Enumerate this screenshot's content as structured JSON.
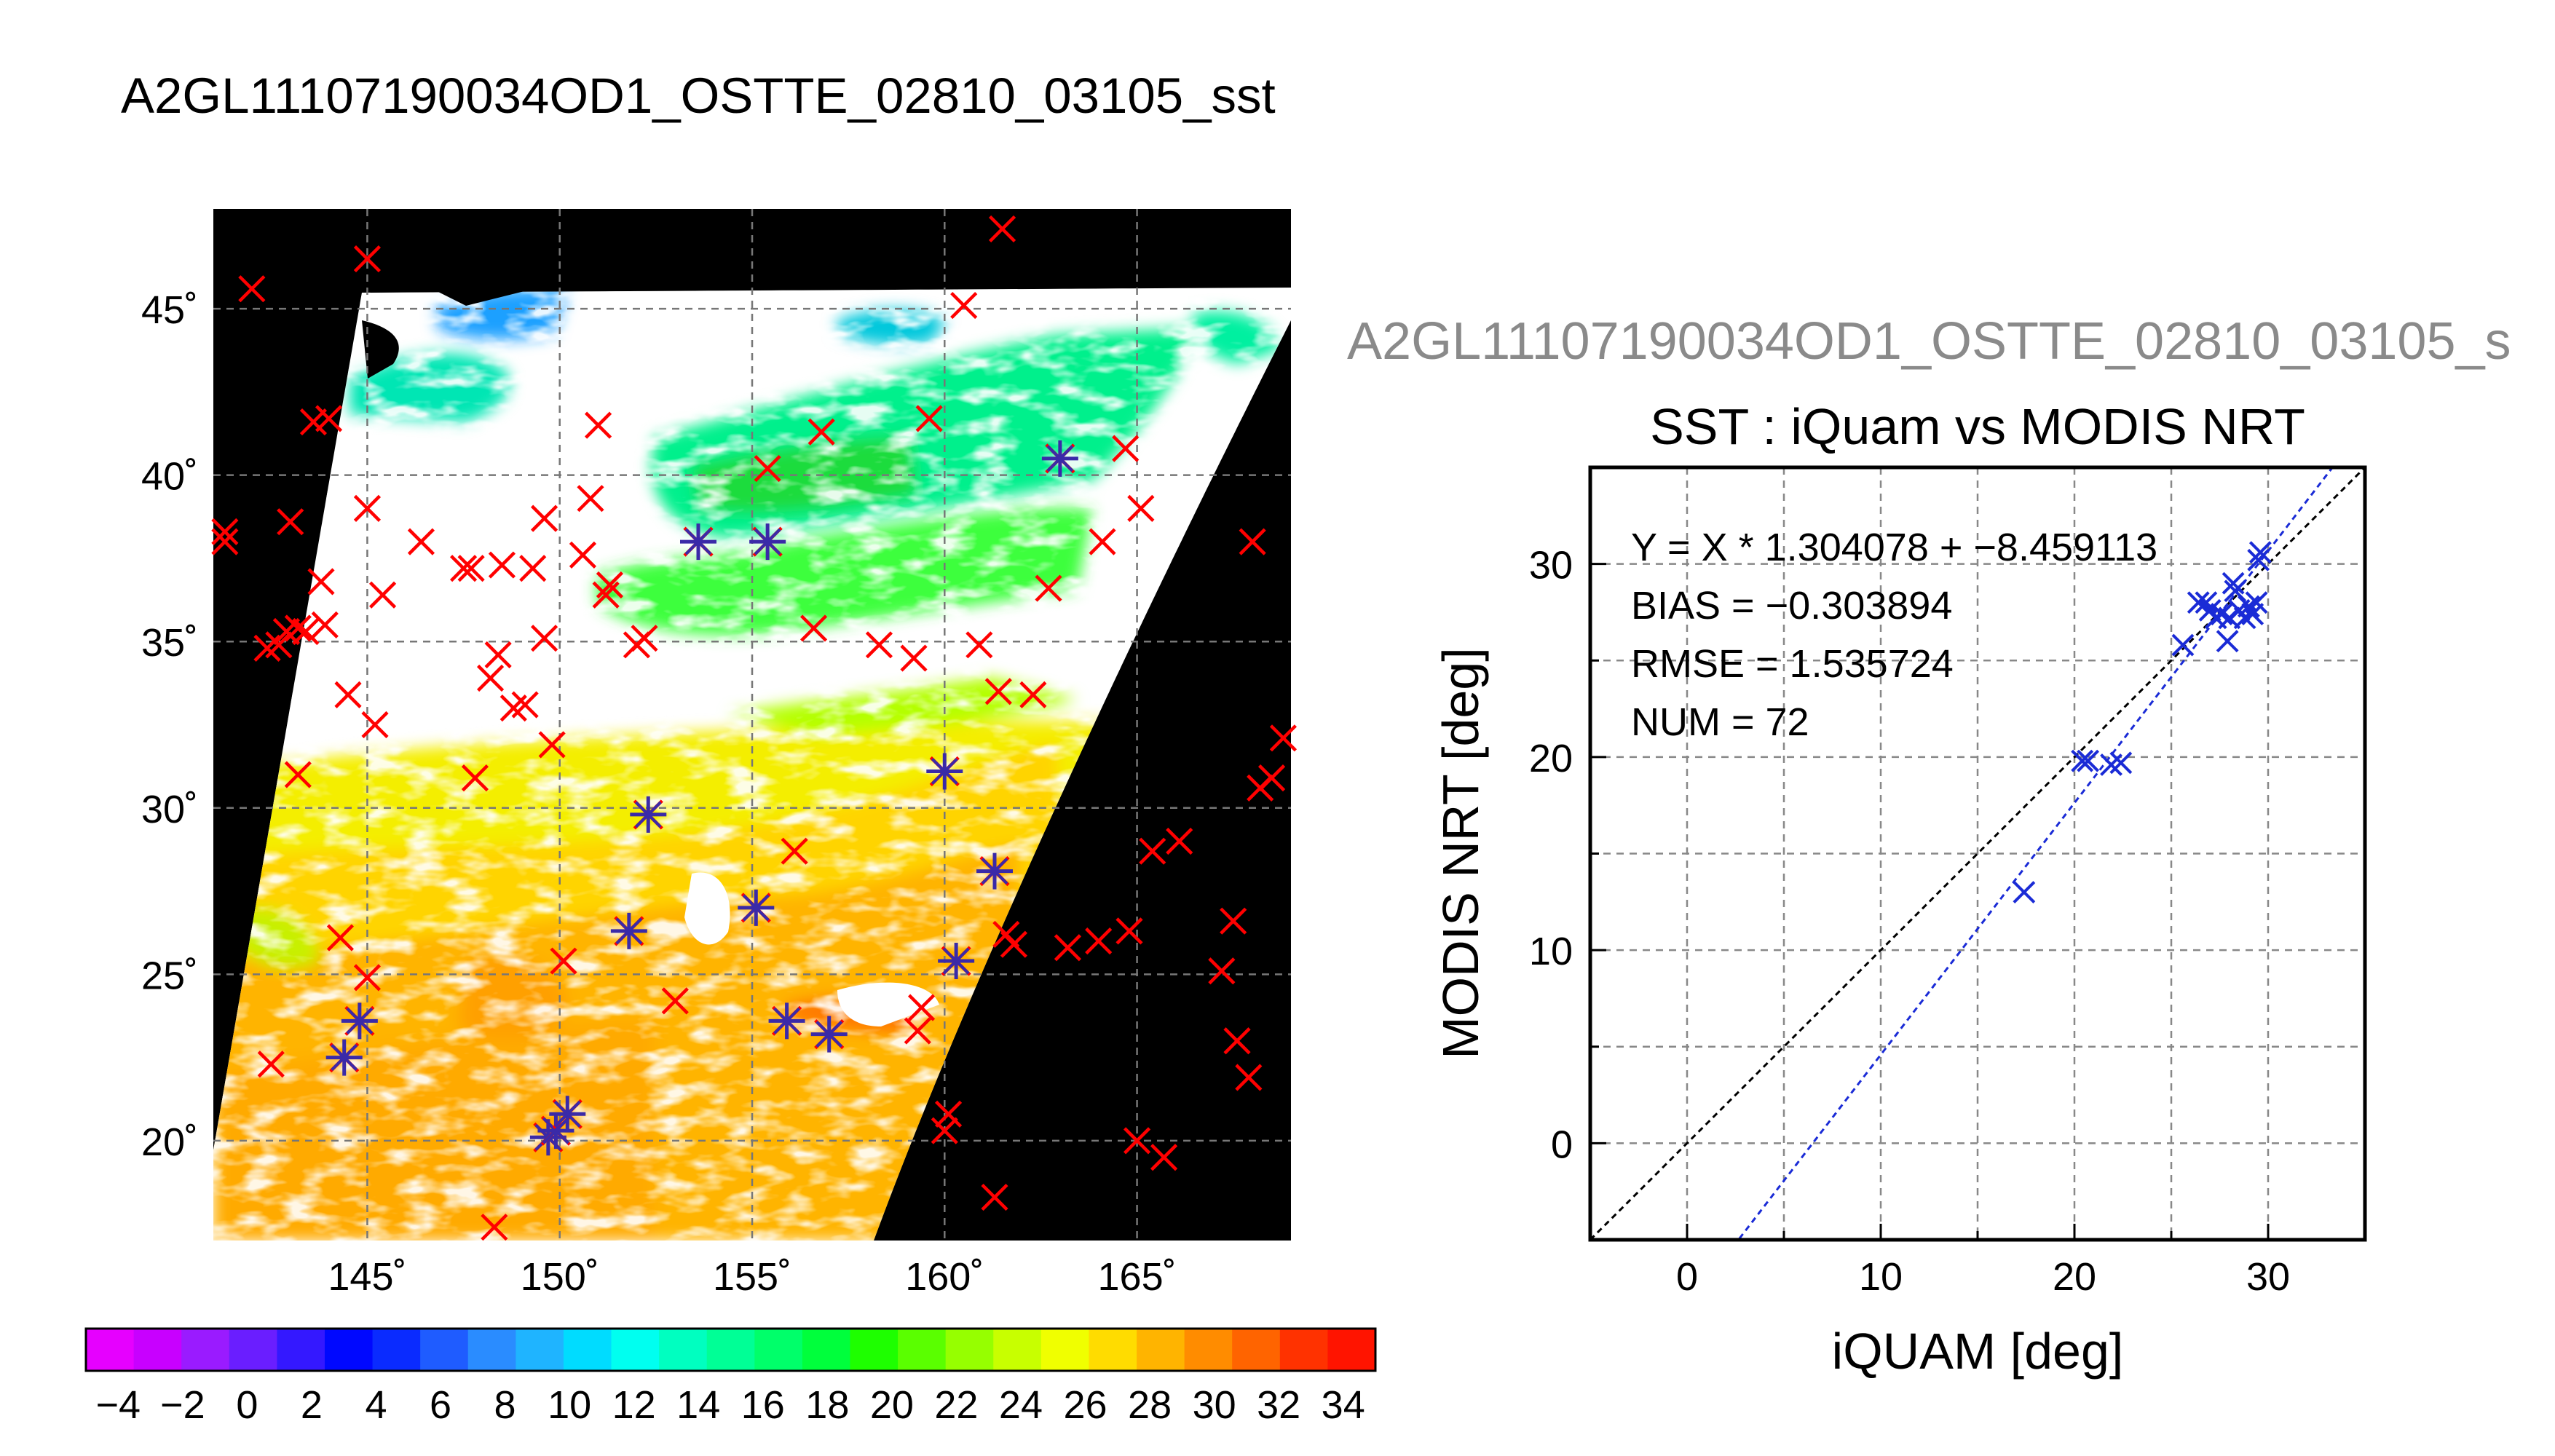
{
  "page": {
    "title": "A2GL11107190034OD1_OSTTE_02810_03105_sst"
  },
  "chart_data": [
    {
      "type": "heatmap",
      "title": "A2GL11107190034OD1_OSTTE_02810_03105_sst",
      "xlabel": "",
      "ylabel": "",
      "x_ticks": [
        145,
        150,
        155,
        160,
        165
      ],
      "y_ticks": [
        20,
        25,
        30,
        35,
        40,
        45
      ],
      "x_tick_labels": [
        "145˚",
        "150˚",
        "155˚",
        "160˚",
        "165˚"
      ],
      "y_tick_labels": [
        "20˚",
        "25˚",
        "30˚",
        "35˚",
        "40˚",
        "45˚"
      ],
      "xlim": [
        141,
        169
      ],
      "ylim": [
        17,
        48
      ],
      "grid": true,
      "colorbar": {
        "ticks": [
          -4,
          -2,
          0,
          2,
          4,
          6,
          8,
          10,
          12,
          14,
          16,
          18,
          20,
          22,
          24,
          26,
          28,
          30,
          32,
          34
        ],
        "tick_labels": [
          "−4",
          "−2",
          "0",
          "2",
          "4",
          "6",
          "8",
          "10",
          "12",
          "14",
          "16",
          "18",
          "20",
          "22",
          "24",
          "26",
          "28",
          "30",
          "32",
          "34"
        ],
        "range": [
          -5,
          35
        ],
        "colors": [
          "#e600ff",
          "#c800ff",
          "#9a1bff",
          "#6a1eff",
          "#3418ff",
          "#0008ff",
          "#0a2bff",
          "#1f5cff",
          "#2a8cff",
          "#1fb4ff",
          "#00dcff",
          "#00fff0",
          "#00ffc0",
          "#00ff96",
          "#00ff6a",
          "#00ff3c",
          "#1eff00",
          "#5aff00",
          "#96ff00",
          "#c8ff00",
          "#f0ff00",
          "#ffdc00",
          "#ffb400",
          "#ff8c00",
          "#ff6400",
          "#ff3200",
          "#ff1400"
        ]
      },
      "marker_colors": {
        "iquam_only": "#ff0000",
        "matched": "#3a2aa8"
      },
      "iquam_points": [
        [
          141.3,
          38.0
        ],
        [
          141.3,
          38.3
        ],
        [
          142.0,
          45.6
        ],
        [
          142.4,
          34.8
        ],
        [
          142.7,
          34.9
        ],
        [
          142.9,
          35.3
        ],
        [
          143.0,
          38.6
        ],
        [
          143.2,
          35.4
        ],
        [
          143.4,
          35.3
        ],
        [
          143.6,
          41.6
        ],
        [
          143.8,
          36.8
        ],
        [
          143.9,
          35.5
        ],
        [
          144.0,
          41.7
        ],
        [
          144.3,
          26.1
        ],
        [
          143.2,
          31.0
        ],
        [
          144.5,
          33.4
        ],
        [
          145.0,
          39.0
        ],
        [
          145.2,
          32.5
        ],
        [
          145.4,
          36.4
        ],
        [
          146.4,
          38.0
        ],
        [
          145.0,
          46.5
        ],
        [
          142.5,
          22.3
        ],
        [
          145.0,
          24.9
        ],
        [
          147.5,
          37.2
        ],
        [
          147.7,
          37.2
        ],
        [
          147.8,
          30.9
        ],
        [
          148.2,
          33.9
        ],
        [
          148.4,
          34.6
        ],
        [
          148.5,
          37.3
        ],
        [
          148.8,
          33.0
        ],
        [
          149.1,
          33.1
        ],
        [
          149.3,
          37.2
        ],
        [
          149.6,
          38.7
        ],
        [
          149.6,
          35.1
        ],
        [
          149.8,
          31.9
        ],
        [
          150.1,
          25.4
        ],
        [
          150.6,
          37.6
        ],
        [
          150.8,
          39.3
        ],
        [
          151.2,
          36.4
        ],
        [
          151.3,
          36.7
        ],
        [
          151.0,
          41.5
        ],
        [
          152.0,
          34.9
        ],
        [
          152.2,
          35.1
        ],
        [
          153.0,
          24.2
        ],
        [
          155.4,
          40.2
        ],
        [
          156.6,
          35.4
        ],
        [
          156.1,
          28.7
        ],
        [
          156.8,
          41.3
        ],
        [
          158.3,
          34.9
        ],
        [
          159.2,
          34.5
        ],
        [
          159.6,
          41.7
        ],
        [
          159.3,
          23.3
        ],
        [
          159.4,
          24.0
        ],
        [
          160.5,
          45.1
        ],
        [
          160.9,
          34.9
        ],
        [
          161.4,
          33.5
        ],
        [
          161.6,
          26.2
        ],
        [
          161.5,
          47.4
        ],
        [
          161.8,
          25.9
        ],
        [
          162.3,
          33.4
        ],
        [
          162.7,
          36.6
        ],
        [
          163.2,
          25.8
        ],
        [
          164.0,
          26.0
        ],
        [
          164.1,
          38.0
        ],
        [
          164.7,
          40.8
        ],
        [
          164.8,
          26.3
        ],
        [
          165.1,
          39.0
        ],
        [
          165.0,
          20.0
        ],
        [
          165.4,
          28.7
        ],
        [
          165.7,
          19.5
        ],
        [
          166.1,
          29.0
        ],
        [
          167.2,
          25.1
        ],
        [
          167.5,
          26.6
        ],
        [
          167.6,
          23.0
        ],
        [
          167.9,
          21.9
        ],
        [
          168.0,
          38.0
        ],
        [
          168.2,
          30.6
        ],
        [
          168.5,
          30.9
        ],
        [
          168.8,
          32.1
        ],
        [
          161.3,
          18.3
        ],
        [
          160.1,
          20.8
        ],
        [
          160.0,
          20.3
        ],
        [
          148.3,
          17.4
        ]
      ],
      "matched_points": [
        [
          144.4,
          22.5
        ],
        [
          144.8,
          23.6
        ],
        [
          149.7,
          20.1
        ],
        [
          149.9,
          20.3
        ],
        [
          150.2,
          20.8
        ],
        [
          151.8,
          26.3
        ],
        [
          152.3,
          29.8
        ],
        [
          153.6,
          38.0
        ],
        [
          155.4,
          38.0
        ],
        [
          155.1,
          27.0
        ],
        [
          155.9,
          23.6
        ],
        [
          157.0,
          23.2
        ],
        [
          160.0,
          31.1
        ],
        [
          160.3,
          25.4
        ],
        [
          161.3,
          28.1
        ],
        [
          163.0,
          40.5
        ]
      ]
    },
    {
      "type": "scatter",
      "title": "SST : iQuam vs MODIS NRT",
      "subtitle": "A2GL11107190034OD1_OSTTE_02810_03105_s",
      "xlabel": "iQUAM [deg]",
      "ylabel": "MODIS NRT [deg]",
      "xlim": [
        -5,
        35
      ],
      "ylim": [
        -5,
        35
      ],
      "x_ticks": [
        0,
        10,
        20,
        30
      ],
      "y_ticks": [
        0,
        10,
        20,
        30
      ],
      "grid": true,
      "fit_slope": 1.304078,
      "fit_intercept": -8.459113,
      "stats": {
        "equation": "Y = X * 1.304078 + −8.459113",
        "bias": "BIAS = −0.303894",
        "rmse": "RMSE = 1.535724",
        "num": "NUM = 72"
      },
      "point_color": "#1a2bd6",
      "points": [
        [
          17.4,
          13.0
        ],
        [
          20.4,
          19.8
        ],
        [
          20.7,
          19.8
        ],
        [
          21.9,
          19.6
        ],
        [
          22.4,
          19.7
        ],
        [
          25.6,
          25.8
        ],
        [
          26.4,
          28.0
        ],
        [
          26.8,
          28.0
        ],
        [
          27.0,
          27.6
        ],
        [
          27.3,
          27.2
        ],
        [
          27.6,
          27.4
        ],
        [
          27.9,
          26.0
        ],
        [
          28.0,
          27.2
        ],
        [
          28.2,
          29.0
        ],
        [
          28.3,
          28.6
        ],
        [
          28.5,
          27.6
        ],
        [
          28.8,
          27.2
        ],
        [
          29.0,
          27.8
        ],
        [
          29.2,
          27.4
        ],
        [
          29.4,
          28.0
        ],
        [
          29.5,
          30.2
        ],
        [
          29.6,
          30.6
        ]
      ]
    }
  ]
}
